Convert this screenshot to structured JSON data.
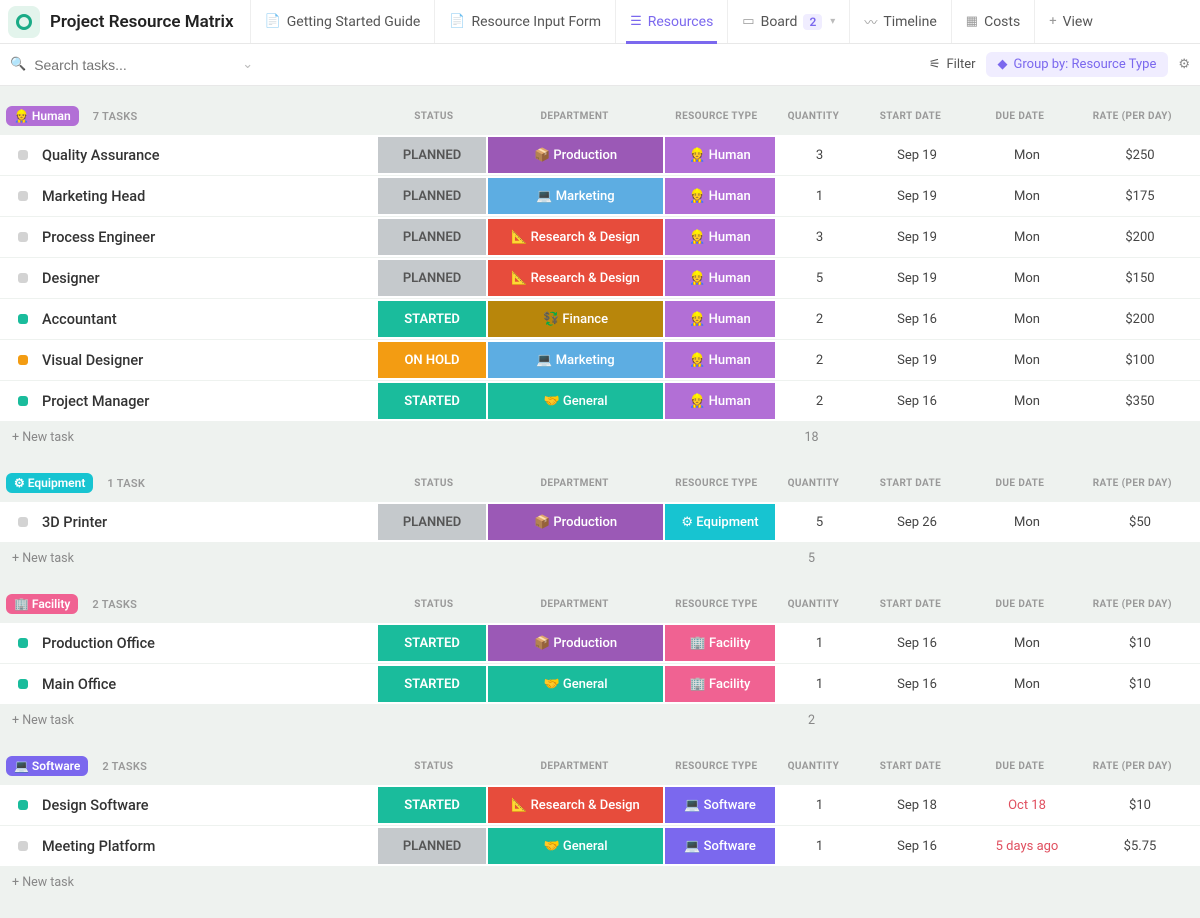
{
  "app": {
    "title": "Project Resource Matrix",
    "tabs": [
      {
        "icon": "📄",
        "label": "Getting Started Guide"
      },
      {
        "icon": "📄",
        "label": "Resource Input Form"
      },
      {
        "icon": "☰",
        "label": "Resources",
        "active": true
      },
      {
        "icon": "▭",
        "label": "Board",
        "badge": "2"
      },
      {
        "icon": "〰",
        "label": "Timeline"
      },
      {
        "icon": "▦",
        "label": "Costs"
      },
      {
        "icon": "+",
        "label": "View"
      }
    ]
  },
  "toolbar": {
    "search_placeholder": "Search tasks...",
    "filter_label": "Filter",
    "group_label": "Group by: Resource Type"
  },
  "columns": [
    "STATUS",
    "DEPARTMENT",
    "RESOURCE TYPE",
    "QUANTITY",
    "START DATE",
    "DUE DATE",
    "RATE (PER DAY)"
  ],
  "colors": {
    "status": {
      "PLANNED": "#c5c9cc",
      "STARTED": "#1abc9c",
      "ON HOLD": "#f39c12"
    },
    "status_text": {
      "PLANNED": "#555",
      "STARTED": "#fff",
      "ON HOLD": "#fff"
    },
    "dept": {
      "Production": "#9b59b6",
      "Marketing": "#5dade2",
      "Research & Design": "#e74c3c",
      "Finance": "#b8860b",
      "General": "#1abc9c"
    },
    "dept_icon": {
      "Production": "📦",
      "Marketing": "💻",
      "Research & Design": "📐",
      "Finance": "💱",
      "General": "🤝"
    },
    "rtype": {
      "Human": "#b26fd6",
      "Equipment": "#17c4d1",
      "Facility": "#f06292",
      "Software": "#7b68ee"
    },
    "rtype_icon": {
      "Human": "👷",
      "Equipment": "⚙",
      "Facility": "🏢",
      "Software": "💻"
    },
    "dot": {
      "PLANNED": "#d3d3d3",
      "STARTED": "#1abc9c",
      "ON HOLD": "#f39c12"
    }
  },
  "groups": [
    {
      "name": "Human",
      "icon": "👷",
      "color": "#b26fd6",
      "count": "7 TASKS",
      "sum": "18",
      "rows": [
        {
          "name": "Quality Assurance",
          "status": "PLANNED",
          "dept": "Production",
          "rtype": "Human",
          "qty": "3",
          "start": "Sep 19",
          "due": "Mon",
          "rate": "$250"
        },
        {
          "name": "Marketing Head",
          "status": "PLANNED",
          "dept": "Marketing",
          "rtype": "Human",
          "qty": "1",
          "start": "Sep 19",
          "due": "Mon",
          "rate": "$175"
        },
        {
          "name": "Process Engineer",
          "status": "PLANNED",
          "dept": "Research & Design",
          "rtype": "Human",
          "qty": "3",
          "start": "Sep 19",
          "due": "Mon",
          "rate": "$200"
        },
        {
          "name": "Designer",
          "status": "PLANNED",
          "dept": "Research & Design",
          "rtype": "Human",
          "qty": "5",
          "start": "Sep 19",
          "due": "Mon",
          "rate": "$150"
        },
        {
          "name": "Accountant",
          "status": "STARTED",
          "dept": "Finance",
          "rtype": "Human",
          "qty": "2",
          "start": "Sep 16",
          "due": "Mon",
          "rate": "$200"
        },
        {
          "name": "Visual Designer",
          "status": "ON HOLD",
          "dept": "Marketing",
          "rtype": "Human",
          "qty": "2",
          "start": "Sep 19",
          "due": "Mon",
          "rate": "$100"
        },
        {
          "name": "Project Manager",
          "status": "STARTED",
          "dept": "General",
          "rtype": "Human",
          "qty": "2",
          "start": "Sep 16",
          "due": "Mon",
          "rate": "$350"
        }
      ]
    },
    {
      "name": "Equipment",
      "icon": "⚙",
      "color": "#17c4d1",
      "count": "1 TASK",
      "sum": "5",
      "rows": [
        {
          "name": "3D Printer",
          "status": "PLANNED",
          "dept": "Production",
          "rtype": "Equipment",
          "qty": "5",
          "start": "Sep 26",
          "due": "Mon",
          "rate": "$50"
        }
      ]
    },
    {
      "name": "Facility",
      "icon": "🏢",
      "color": "#f06292",
      "count": "2 TASKS",
      "sum": "2",
      "rows": [
        {
          "name": "Production Office",
          "status": "STARTED",
          "dept": "Production",
          "rtype": "Facility",
          "qty": "1",
          "start": "Sep 16",
          "due": "Mon",
          "rate": "$10"
        },
        {
          "name": "Main Office",
          "status": "STARTED",
          "dept": "General",
          "rtype": "Facility",
          "qty": "1",
          "start": "Sep 16",
          "due": "Mon",
          "rate": "$10"
        }
      ]
    },
    {
      "name": "Software",
      "icon": "💻",
      "color": "#7b68ee",
      "count": "2 TASKS",
      "sum": "",
      "rows": [
        {
          "name": "Design Software",
          "status": "STARTED",
          "dept": "Research & Design",
          "rtype": "Software",
          "qty": "1",
          "start": "Sep 18",
          "due": "Oct 18",
          "rate": "$10",
          "overdue": true
        },
        {
          "name": "Meeting Platform",
          "status": "PLANNED",
          "dept": "General",
          "rtype": "Software",
          "qty": "1",
          "start": "Sep 16",
          "due": "5 days ago",
          "rate": "$5.75",
          "overdue": true
        }
      ]
    }
  ],
  "new_task_label": "+ New task"
}
